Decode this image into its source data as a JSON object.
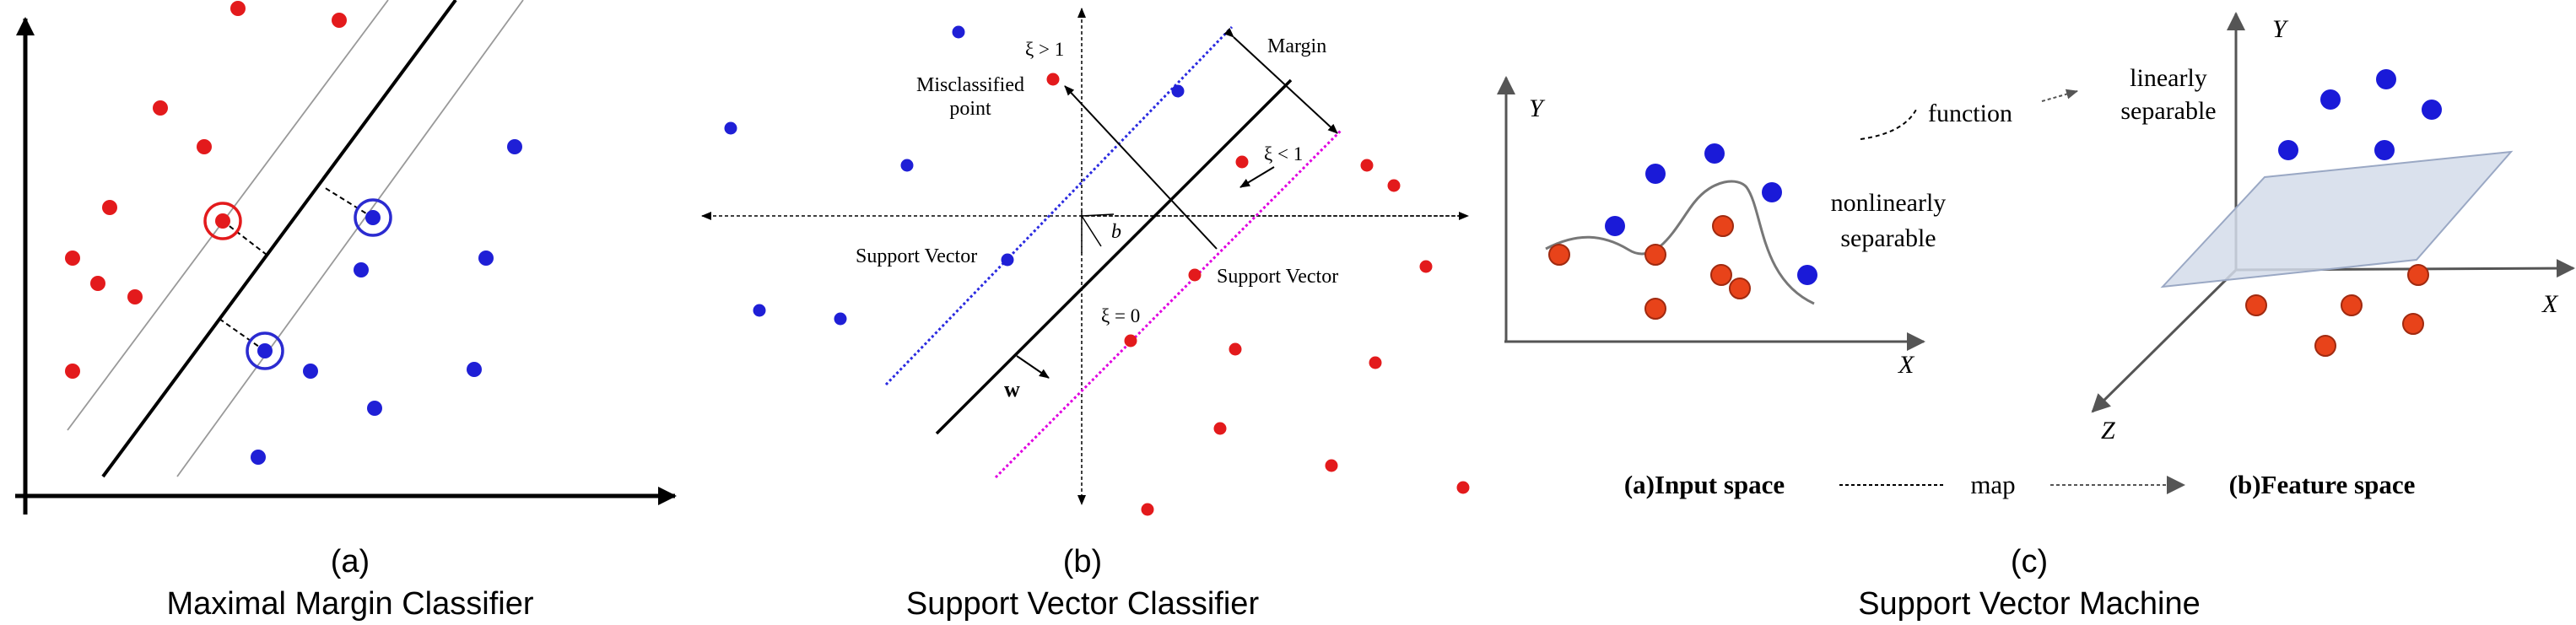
{
  "panel_a": {
    "letter": "(a)",
    "title": "Maximal Margin Classifier"
  },
  "panel_b": {
    "letter": "(b)",
    "title": "Support Vector Classifier",
    "labels": {
      "xi_gt_1": "ξ > 1",
      "misclassified_line1": "Misclassified",
      "misclassified_line2": "point",
      "margin": "Margin",
      "xi_lt_1": "ξ < 1",
      "b": "b",
      "support_vector_left": "Support Vector",
      "support_vector_right": "Support Vector",
      "xi_eq_0": "ξ = 0",
      "w": "w"
    }
  },
  "panel_c": {
    "letter": "(c)",
    "title": "Support Vector Machine",
    "labels": {
      "y_left": "Y",
      "x_left": "X",
      "function": "function",
      "nonlinearly_line1": "nonlinearly",
      "nonlinearly_line2": "separable",
      "linearly_line1": "linearly",
      "linearly_line2": "separable",
      "y_right": "Y",
      "x_right": "X",
      "z_right": "Z",
      "input_space": "(a)Input space",
      "map": "map",
      "feature_space": "(b)Feature space"
    }
  },
  "colors": {
    "red": "#e31a1c",
    "blue": "#1f1fd6",
    "orange": "#e8431a",
    "blue_c": "#1a1ad8",
    "plane": "#d4dcea",
    "magenta": "#e000e0"
  }
}
